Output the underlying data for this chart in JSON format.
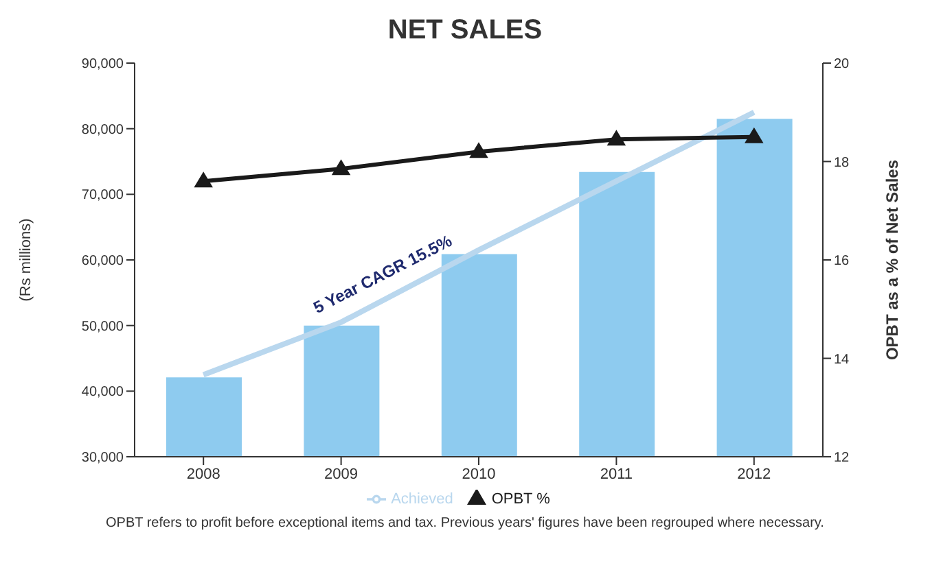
{
  "chart_data": {
    "type": "bar",
    "title": "NET SALES",
    "ylabel": "(Rs millions)",
    "y2label": "OPBT as a % of Net Sales",
    "categories": [
      "2008",
      "2009",
      "2010",
      "2011",
      "2012"
    ],
    "series": [
      {
        "color": "#8ecbef",
        "values": [
          42100,
          50000,
          60900,
          73400,
          81500
        ]
      },
      {
        "type": "line",
        "name": "Achieved",
        "color": "#b9d7ee",
        "values": [
          42500,
          50500,
          61500,
          72000,
          82500
        ]
      },
      {
        "type": "line",
        "name": "OPBT %",
        "color": "#1a1a1a",
        "axis": "y2",
        "marker": "triangle",
        "values": [
          17.6,
          17.85,
          18.2,
          18.45,
          18.5
        ]
      }
    ],
    "ylim": [
      30000,
      90000
    ],
    "yticks": [
      {
        "value": 30000,
        "label": "30,000"
      },
      {
        "value": 40000,
        "label": "40,000"
      },
      {
        "value": 50000,
        "label": "50,000"
      },
      {
        "value": 60000,
        "label": "60,000"
      },
      {
        "value": 70000,
        "label": "70,000"
      },
      {
        "value": 80000,
        "label": "80,000"
      },
      {
        "value": 90000,
        "label": "90,000"
      }
    ],
    "y2lim": [
      12,
      20
    ],
    "y2ticks": [
      12,
      14,
      16,
      18,
      20
    ],
    "legend": "bottom",
    "grid": false,
    "annotations": [
      "5 Year CAGR 15.5%",
      "OPBT refers to profit before exceptional items and tax. Previous years' figures have been regrouped where necessary."
    ]
  }
}
